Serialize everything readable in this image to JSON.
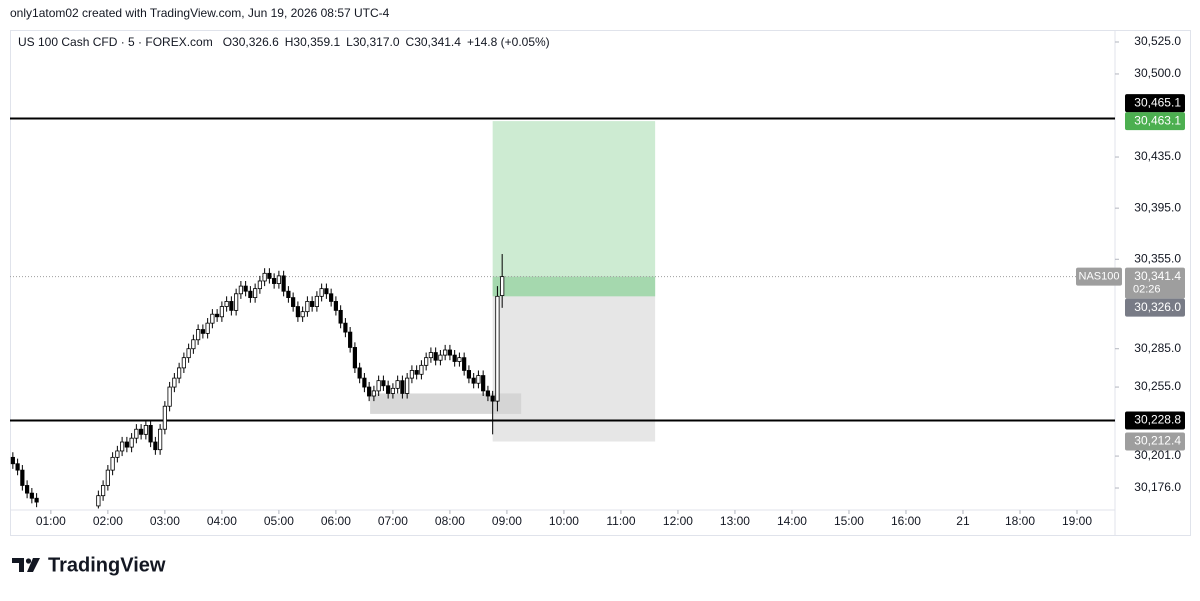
{
  "chart_data": {
    "type": "candlestick",
    "credit": "only1atom02 created with TradingView.com, Jun 19, 2026 08:57 UTC-4",
    "symbol": "US 100 Cash CFD · 5 · FOREX.com",
    "ohlc_labels": [
      "O30,326.6",
      "H30,359.1",
      "L30,317.0",
      "C30,341.4",
      "+14.8 (+0.05%)"
    ],
    "brand": "TradingView",
    "x": [
      20,
      25,
      30,
      35,
      40,
      45,
      110,
      115,
      120,
      125,
      130,
      135,
      140,
      145,
      150,
      155,
      160,
      165,
      170,
      175,
      180,
      185,
      190,
      195,
      200,
      205,
      210,
      215,
      220,
      225,
      230,
      235,
      240,
      245,
      250,
      255,
      260,
      265,
      270,
      275,
      280,
      285,
      290,
      295,
      300,
      305,
      310,
      315,
      320,
      325,
      330,
      335,
      340,
      345,
      350,
      355,
      360,
      365,
      370,
      375,
      380,
      385,
      390,
      395,
      400,
      405,
      410,
      415,
      420,
      425,
      430,
      435,
      440,
      445,
      450,
      455,
      460,
      465,
      470,
      475,
      480,
      485,
      490,
      495,
      500,
      505,
      510,
      515,
      520,
      525,
      530,
      535
    ],
    "open": [
      30200,
      30195,
      30190,
      30178,
      30172,
      30168,
      30162,
      30170,
      30178,
      30190,
      30200,
      30205,
      30212,
      30208,
      30215,
      30222,
      30218,
      30225,
      30212,
      30206,
      30222,
      30240,
      30255,
      30262,
      30270,
      30278,
      30285,
      30292,
      30300,
      30297,
      30305,
      30312,
      30310,
      30318,
      30322,
      30315,
      30328,
      30334,
      30330,
      30325,
      30332,
      30338,
      30344,
      30340,
      30336,
      30342,
      30330,
      30325,
      30318,
      30310,
      30314,
      30322,
      30318,
      30326,
      30332,
      30328,
      30322,
      30315,
      30305,
      30298,
      30286,
      30270,
      30262,
      30255,
      30248,
      30252,
      30260,
      30256,
      30250,
      30254,
      30260,
      30250,
      30262,
      30268,
      30265,
      30272,
      30278,
      30282,
      30276,
      30280,
      30284,
      30280,
      30275,
      30278,
      30268,
      30262,
      30258,
      30264,
      30252,
      30248,
      30244,
      30326.6
    ],
    "high": [
      30204,
      30199,
      30194,
      30182,
      30176,
      30172,
      30174,
      30182,
      30194,
      30204,
      30209,
      30216,
      30216,
      30219,
      30226,
      30226,
      30229,
      30229,
      30216,
      30226,
      30244,
      30259,
      30266,
      30274,
      30282,
      30289,
      30296,
      30304,
      30304,
      30309,
      30316,
      30316,
      30322,
      30326,
      30326,
      30332,
      30338,
      30338,
      30334,
      30336,
      30342,
      30348,
      30348,
      30344,
      30346,
      30346,
      30334,
      30329,
      30322,
      30318,
      30326,
      30326,
      30330,
      30336,
      30336,
      30332,
      30326,
      30319,
      30309,
      30302,
      30290,
      30274,
      30266,
      30259,
      30256,
      30264,
      30264,
      30260,
      30258,
      30264,
      30264,
      30266,
      30272,
      30272,
      30276,
      30282,
      30286,
      30286,
      30284,
      30288,
      30288,
      30284,
      30282,
      30282,
      30272,
      30266,
      30268,
      30268,
      30256,
      30252,
      30334,
      30359.1
    ],
    "low": [
      30191,
      30186,
      30174,
      30168,
      30164,
      30161,
      30160,
      30166,
      30174,
      30186,
      30196,
      30201,
      30204,
      30204,
      30211,
      30214,
      30214,
      30208,
      30202,
      30202,
      30218,
      30236,
      30251,
      30258,
      30266,
      30274,
      30281,
      30288,
      30293,
      30293,
      30301,
      30306,
      30306,
      30314,
      30311,
      30311,
      30324,
      30326,
      30321,
      30321,
      30328,
      30334,
      30336,
      30332,
      30332,
      30326,
      30321,
      30314,
      30306,
      30306,
      30310,
      30314,
      30314,
      30322,
      30324,
      30318,
      30311,
      30301,
      30294,
      30282,
      30266,
      30258,
      30251,
      30244,
      30244,
      30248,
      30252,
      30246,
      30246,
      30250,
      30246,
      30246,
      30258,
      30261,
      30261,
      30268,
      30274,
      30272,
      30272,
      30276,
      30276,
      30271,
      30271,
      30264,
      30258,
      30254,
      30254,
      30248,
      30244,
      30218,
      30236,
      30317
    ],
    "close": [
      30195,
      30190,
      30178,
      30172,
      30168,
      30165,
      30170,
      30178,
      30190,
      30200,
      30205,
      30212,
      30208,
      30215,
      30222,
      30218,
      30225,
      30212,
      30206,
      30222,
      30240,
      30255,
      30262,
      30270,
      30278,
      30285,
      30292,
      30300,
      30297,
      30305,
      30312,
      30310,
      30318,
      30322,
      30315,
      30328,
      30334,
      30330,
      30325,
      30332,
      30338,
      30344,
      30340,
      30336,
      30342,
      30330,
      30325,
      30318,
      30310,
      30314,
      30322,
      30318,
      30326,
      30332,
      30328,
      30322,
      30315,
      30305,
      30298,
      30286,
      30270,
      30262,
      30255,
      30248,
      30252,
      30260,
      30256,
      30250,
      30254,
      30260,
      30250,
      30262,
      30268,
      30265,
      30272,
      30278,
      30282,
      30276,
      30280,
      30284,
      30280,
      30275,
      30278,
      30268,
      30262,
      30258,
      30264,
      30252,
      30248,
      30244,
      30326,
      30341.4
    ],
    "up_color": "#ffffff",
    "down_color": "#000000",
    "xlim": [
      17,
      1180
    ],
    "ylim": [
      30158.8,
      30534.4
    ],
    "xticks": [
      {
        "value": 60,
        "label": "01:00"
      },
      {
        "value": 120,
        "label": "02:00"
      },
      {
        "value": 180,
        "label": "03:00"
      },
      {
        "value": 240,
        "label": "04:00"
      },
      {
        "value": 300,
        "label": "05:00"
      },
      {
        "value": 360,
        "label": "06:00"
      },
      {
        "value": 420,
        "label": "07:00"
      },
      {
        "value": 480,
        "label": "08:00"
      },
      {
        "value": 540,
        "label": "09:00"
      },
      {
        "value": 600,
        "label": "10:00"
      },
      {
        "value": 660,
        "label": "11:00"
      },
      {
        "value": 720,
        "label": "12:00"
      },
      {
        "value": 780,
        "label": "13:00"
      },
      {
        "value": 840,
        "label": "14:00"
      },
      {
        "value": 900,
        "label": "15:00"
      },
      {
        "value": 960,
        "label": "16:00"
      },
      {
        "value": 1020,
        "label": "21"
      },
      {
        "value": 1080,
        "label": "18:00"
      },
      {
        "value": 1140,
        "label": "19:00"
      }
    ],
    "yticks": [
      {
        "value": 30525,
        "label": "30,525.0"
      },
      {
        "value": 30500,
        "label": "30,500.0"
      },
      {
        "value": 30435,
        "label": "30,435.0"
      },
      {
        "value": 30395,
        "label": "30,395.0"
      },
      {
        "value": 30355,
        "label": "30,355.0"
      },
      {
        "value": 30285,
        "label": "30,285.0"
      },
      {
        "value": 30255,
        "label": "30,255.0"
      },
      {
        "value": 30201,
        "label": "30,201.0"
      },
      {
        "value": 30176,
        "label": "30,176.0"
      }
    ],
    "levels": [
      {
        "value": 30465.1,
        "label": "30,465.1"
      },
      {
        "value": 30228.8,
        "label": "30,228.8"
      }
    ],
    "position": {
      "x": [
        525,
        696
      ],
      "target": {
        "value": 30463.1,
        "label": "30,463.1"
      },
      "entry": {
        "value": 30326.0,
        "label": "30,326.0"
      },
      "stop": {
        "value": 30212.4,
        "label": "30,212.4"
      }
    },
    "zone": {
      "x": [
        396,
        555
      ],
      "y": [
        30234,
        30250
      ]
    },
    "current": {
      "value": 30341.4,
      "label": "30,341.4",
      "countdown": "02:26",
      "tag": "NAS100"
    }
  }
}
